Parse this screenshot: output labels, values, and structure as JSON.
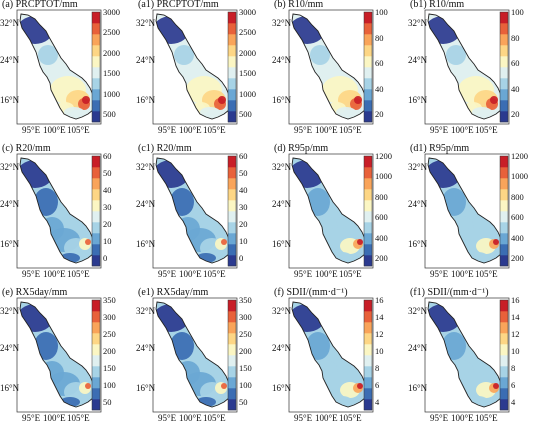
{
  "lat_labels": [
    "32°N",
    "24°N",
    "16°N"
  ],
  "lon_labels": [
    "95°E",
    "100°E",
    "105°E"
  ],
  "region": "Lancang-Mekong basin (map)",
  "panels": [
    {
      "id": "a",
      "title": "(a) PRCPTOT/mm",
      "cb_ticks": [
        "3000",
        "2500",
        "2000",
        "1500",
        "1000",
        "500"
      ],
      "style": "high"
    },
    {
      "id": "a1",
      "title": "(a1) PRCPTOT/mm",
      "cb_ticks": [
        "3000",
        "2500",
        "2000",
        "1500",
        "1000",
        "500"
      ],
      "style": "high"
    },
    {
      "id": "b",
      "title": "(b) R10/mm",
      "cb_ticks": [
        "100",
        "80",
        "60",
        "40",
        "20"
      ],
      "style": "high"
    },
    {
      "id": "b1",
      "title": "(b1) R10/mm",
      "cb_ticks": [
        "100",
        "80",
        "60",
        "40",
        "20"
      ],
      "style": "high"
    },
    {
      "id": "c",
      "title": "(c) R20/mm",
      "cb_ticks": [
        "60",
        "50",
        "40",
        "30",
        "20",
        "10",
        "0"
      ],
      "style": "low"
    },
    {
      "id": "c1",
      "title": "(c1) R20/mm",
      "cb_ticks": [
        "60",
        "50",
        "40",
        "30",
        "20",
        "10",
        "0"
      ],
      "style": "low"
    },
    {
      "id": "d",
      "title": "(d) R95p/mm",
      "cb_ticks": [
        "1200",
        "1000",
        "800",
        "600",
        "400",
        "200"
      ],
      "style": "mid"
    },
    {
      "id": "d1",
      "title": "(d1) R95p/mm",
      "cb_ticks": [
        "1200",
        "1000",
        "800",
        "600",
        "400",
        "200"
      ],
      "style": "mid"
    },
    {
      "id": "e",
      "title": "(e) RX5day/mm",
      "cb_ticks": [
        "350",
        "300",
        "250",
        "200",
        "150",
        "100",
        "50"
      ],
      "style": "low"
    },
    {
      "id": "e1",
      "title": "(e1) RX5day/mm",
      "cb_ticks": [
        "350",
        "300",
        "250",
        "200",
        "150",
        "100",
        "50"
      ],
      "style": "low"
    },
    {
      "id": "f",
      "title": "(f) SDII/(mm·d⁻¹)",
      "cb_ticks": [
        "16",
        "14",
        "12",
        "10",
        "8",
        "6",
        "4"
      ],
      "style": "mid"
    },
    {
      "id": "f1",
      "title": "(f1) SDII/(mm·d⁻¹)",
      "cb_ticks": [
        "16",
        "14",
        "12",
        "10",
        "8",
        "6",
        "4"
      ],
      "style": "mid"
    }
  ],
  "colormap": [
    "#2b3a8f",
    "#3b6db3",
    "#6aa7d4",
    "#a7d3e6",
    "#e0f0f0",
    "#fbf6c3",
    "#fdd685",
    "#f9a45a",
    "#e8613a",
    "#c81e27"
  ]
}
